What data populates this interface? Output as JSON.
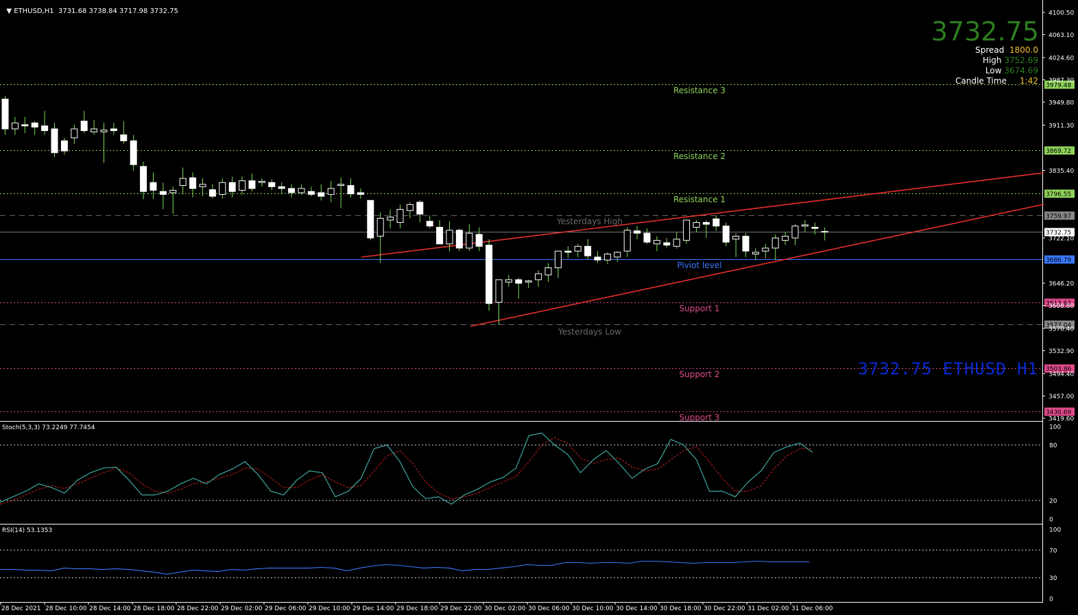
{
  "header": {
    "symbol_tf": "ETHUSD,H1",
    "ohlc": "3731.68 3738.84 3717.98 3732.75"
  },
  "info_panel": {
    "price": "3732.75",
    "spread_label": "Spread",
    "spread_value": "1800.0",
    "high_label": "High",
    "high_value": "3752.69",
    "low_label": "Low",
    "low_value": "3674.69",
    "candle_time_label": "Candle Time",
    "candle_time_value": "1:42"
  },
  "watermark": "3732.75  ETHUSD H1",
  "colors": {
    "background": "#000000",
    "bull_candle": "#ffffff",
    "wick": "#7fdc5a",
    "resistance": "#8fd45a",
    "support": "#e04a8a",
    "pivot": "#3a78ff",
    "trendline": "#e8302a",
    "stoch_main": "#3fa8a0",
    "stoch_signal": "#d02020",
    "rsi": "#3a78ff",
    "big_price": "#2e7d1f",
    "watermark": "#0a2ad8"
  },
  "levels": [
    {
      "name": "Resistance 3",
      "label": "Resistance 3",
      "price": 3979.48,
      "tag": "3979.48",
      "kind": "resistance"
    },
    {
      "name": "Resistance 2",
      "label": "Resistance 2",
      "price": 3869.72,
      "tag": "3869.72",
      "kind": "resistance"
    },
    {
      "name": "Resistance 1",
      "label": "Resistance 1",
      "price": 3796.55,
      "tag": "3796.55",
      "kind": "resistance"
    },
    {
      "name": "Yesterdays High",
      "label": "Yesterdays High",
      "price": 3759.97,
      "tag": "3759.97",
      "kind": "yesterday"
    },
    {
      "name": "Pivot",
      "label": "Piviot level",
      "price": 3686.79,
      "tag": "3686.79",
      "kind": "pivot"
    },
    {
      "name": "Support 1",
      "label": "Support 1",
      "price": 3613.62,
      "tag": "3613.62",
      "kind": "support"
    },
    {
      "name": "Yesterdays Low",
      "label": "Yesterdays Low",
      "price": 3577.04,
      "tag": "3577.04",
      "kind": "yesterday"
    },
    {
      "name": "Support 2",
      "label": "Support 2",
      "price": 3503.86,
      "tag": "3503.86",
      "kind": "support"
    },
    {
      "name": "Support 3",
      "label": "Support 3",
      "price": 3430.69,
      "tag": "3430.69",
      "kind": "support"
    }
  ],
  "current_price_tag": "3732.75",
  "price_axis_ticks": [
    "4100.50",
    "4063.10",
    "4024.60",
    "3987.30",
    "3949.80",
    "3911.30",
    "3835.40",
    "3722.10",
    "3646.20",
    "3608.80",
    "3570.40",
    "3532.90",
    "3494.40",
    "3457.00",
    "3419.60"
  ],
  "stoch": {
    "label": "Stoch(5,3,3) 73.2249 77.7454",
    "ticks": [
      "100",
      "80",
      "20",
      "0"
    ]
  },
  "rsi": {
    "label": "RSI(14) 53.1353",
    "ticks": [
      "100",
      "70",
      "30",
      "0"
    ]
  },
  "time_axis": [
    "28 Dec 2021",
    "28 Dec 10:00",
    "28 Dec 14:00",
    "28 Dec 18:00",
    "28 Dec 22:00",
    "29 Dec 02:00",
    "29 Dec 06:00",
    "29 Dec 10:00",
    "29 Dec 14:00",
    "29 Dec 18:00",
    "29 Dec 22:00",
    "30 Dec 02:00",
    "30 Dec 06:00",
    "30 Dec 10:00",
    "30 Dec 14:00",
    "30 Dec 18:00",
    "30 Dec 22:00",
    "31 Dec 02:00",
    "31 Dec 06:00"
  ],
  "chart_data": {
    "type": "candlestick",
    "symbol": "ETHUSD",
    "timeframe": "H1",
    "ylim": [
      3419.6,
      4100.5
    ],
    "candles": [
      [
        3955,
        3960,
        3895,
        3905
      ],
      [
        3905,
        3925,
        3895,
        3915
      ],
      [
        3912,
        3925,
        3898,
        3910
      ],
      [
        3915,
        3918,
        3895,
        3908
      ],
      [
        3910,
        3935,
        3895,
        3902
      ],
      [
        3905,
        3915,
        3858,
        3865
      ],
      [
        3885,
        3890,
        3862,
        3868
      ],
      [
        3890,
        3912,
        3880,
        3905
      ],
      [
        3918,
        3935,
        3898,
        3902
      ],
      [
        3900,
        3920,
        3895,
        3905
      ],
      [
        3900,
        3915,
        3848,
        3903
      ],
      [
        3905,
        3915,
        3895,
        3902
      ],
      [
        3895,
        3918,
        3880,
        3885
      ],
      [
        3885,
        3895,
        3835,
        3845
      ],
      [
        3842,
        3850,
        3787,
        3800
      ],
      [
        3815,
        3832,
        3788,
        3802
      ],
      [
        3800,
        3815,
        3770,
        3795
      ],
      [
        3798,
        3808,
        3762,
        3802
      ],
      [
        3810,
        3840,
        3795,
        3822
      ],
      [
        3823,
        3832,
        3790,
        3805
      ],
      [
        3808,
        3822,
        3792,
        3812
      ],
      [
        3803,
        3812,
        3788,
        3792
      ],
      [
        3795,
        3822,
        3788,
        3815
      ],
      [
        3815,
        3825,
        3790,
        3800
      ],
      [
        3802,
        3825,
        3795,
        3818
      ],
      [
        3818,
        3830,
        3800,
        3805
      ],
      [
        3815,
        3822,
        3808,
        3817
      ],
      [
        3815,
        3820,
        3802,
        3808
      ],
      [
        3808,
        3815,
        3795,
        3805
      ],
      [
        3805,
        3812,
        3790,
        3798
      ],
      [
        3798,
        3812,
        3795,
        3805
      ],
      [
        3800,
        3808,
        3792,
        3795
      ],
      [
        3798,
        3812,
        3785,
        3792
      ],
      [
        3795,
        3818,
        3782,
        3805
      ],
      [
        3810,
        3823,
        3772,
        3812
      ],
      [
        3810,
        3822,
        3790,
        3796
      ],
      [
        3798,
        3805,
        3788,
        3795
      ],
      [
        3785,
        3785,
        3718,
        3722
      ],
      [
        3725,
        3765,
        3680,
        3755
      ],
      [
        3752,
        3770,
        3738,
        3757
      ],
      [
        3748,
        3778,
        3738,
        3770
      ],
      [
        3768,
        3782,
        3755,
        3778
      ],
      [
        3782,
        3785,
        3748,
        3762
      ],
      [
        3750,
        3760,
        3738,
        3742
      ],
      [
        3740,
        3752,
        3712,
        3712
      ],
      [
        3712,
        3750,
        3700,
        3735
      ],
      [
        3735,
        3738,
        3700,
        3705
      ],
      [
        3705,
        3745,
        3700,
        3730
      ],
      [
        3728,
        3740,
        3700,
        3708
      ],
      [
        3710,
        3720,
        3600,
        3612
      ],
      [
        3614,
        3650,
        3576,
        3652
      ],
      [
        3648,
        3660,
        3640,
        3652
      ],
      [
        3652,
        3655,
        3620,
        3646
      ],
      [
        3648,
        3652,
        3638,
        3650
      ],
      [
        3652,
        3668,
        3640,
        3662
      ],
      [
        3660,
        3680,
        3648,
        3672
      ],
      [
        3672,
        3700,
        3655,
        3700
      ],
      [
        3700,
        3708,
        3688,
        3698
      ],
      [
        3700,
        3712,
        3690,
        3708
      ],
      [
        3708,
        3720,
        3686,
        3692
      ],
      [
        3690,
        3700,
        3680,
        3685
      ],
      [
        3685,
        3698,
        3678,
        3695
      ],
      [
        3690,
        3700,
        3682,
        3698
      ],
      [
        3700,
        3740,
        3690,
        3735
      ],
      [
        3734,
        3742,
        3720,
        3730
      ],
      [
        3730,
        3738,
        3712,
        3715
      ],
      [
        3712,
        3725,
        3700,
        3718
      ],
      [
        3714,
        3722,
        3706,
        3710
      ],
      [
        3708,
        3732,
        3704,
        3720
      ],
      [
        3718,
        3752,
        3712,
        3752
      ],
      [
        3740,
        3752,
        3732,
        3748
      ],
      [
        3748,
        3752,
        3722,
        3745
      ],
      [
        3754,
        3760,
        3734,
        3742
      ],
      [
        3742,
        3748,
        3708,
        3715
      ],
      [
        3720,
        3730,
        3690,
        3725
      ],
      [
        3725,
        3730,
        3690,
        3700
      ],
      [
        3695,
        3705,
        3685,
        3698
      ],
      [
        3700,
        3712,
        3688,
        3705
      ],
      [
        3705,
        3728,
        3685,
        3722
      ],
      [
        3718,
        3732,
        3710,
        3725
      ],
      [
        3722,
        3745,
        3710,
        3742
      ],
      [
        3742,
        3752,
        3732,
        3744
      ],
      [
        3740,
        3748,
        3728,
        3738
      ],
      [
        3732,
        3740,
        3718,
        3733
      ]
    ],
    "stoch_main": [
      18,
      24,
      30,
      38,
      34,
      28,
      42,
      50,
      55,
      56,
      42,
      26,
      26,
      30,
      38,
      44,
      38,
      48,
      54,
      62,
      48,
      30,
      26,
      42,
      52,
      50,
      24,
      30,
      44,
      76,
      80,
      62,
      35,
      22,
      24,
      16,
      26,
      32,
      40,
      45,
      55,
      90,
      93,
      80,
      70,
      50,
      64,
      74,
      60,
      44,
      54,
      60,
      86,
      80,
      64,
      30,
      30,
      24,
      40,
      52,
      72,
      78,
      82,
      72
    ],
    "stoch_signal": [
      16,
      20,
      26,
      32,
      36,
      33,
      38,
      44,
      50,
      55,
      50,
      38,
      30,
      28,
      32,
      38,
      40,
      44,
      48,
      55,
      54,
      44,
      34,
      34,
      42,
      48,
      40,
      34,
      36,
      52,
      68,
      74,
      60,
      40,
      28,
      22,
      24,
      28,
      34,
      40,
      46,
      62,
      80,
      88,
      82,
      66,
      60,
      64,
      66,
      56,
      52,
      54,
      64,
      74,
      78,
      62,
      44,
      30,
      30,
      36,
      54,
      68,
      76,
      76
    ],
    "rsi": [
      42,
      42,
      41,
      41,
      40,
      44,
      43,
      43,
      42,
      43,
      42,
      40,
      38,
      35,
      38,
      41,
      40,
      39,
      42,
      41,
      43,
      44,
      44,
      44,
      44,
      45,
      44,
      40,
      44,
      47,
      49,
      48,
      46,
      44,
      45,
      44,
      40,
      42,
      42,
      44,
      46,
      49,
      48,
      48,
      52,
      52,
      51,
      52,
      52,
      51,
      54,
      54,
      53,
      52,
      51,
      52,
      52,
      52,
      53,
      54,
      53,
      53,
      53,
      53
    ]
  }
}
